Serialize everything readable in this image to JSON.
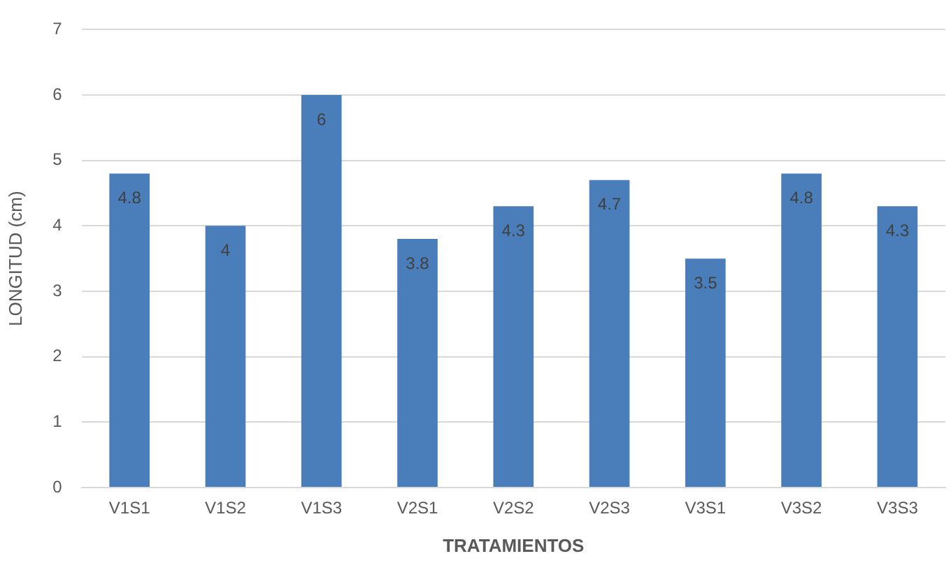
{
  "chart_data": {
    "type": "bar",
    "xlabel": "TRATAMIENTOS",
    "ylabel": "LONGITUD (cm)",
    "categories": [
      "V1S1",
      "V1S2",
      "V1S3",
      "V2S1",
      "V2S2",
      "V2S3",
      "V3S1",
      "V3S2",
      "V3S3"
    ],
    "values": [
      4.8,
      4,
      6,
      3.8,
      4.3,
      4.7,
      3.5,
      4.8,
      4.3
    ],
    "color": "#4a7ebb",
    "ylim": [
      0,
      7
    ],
    "yticks": [
      0,
      1,
      2,
      3,
      4,
      5,
      6,
      7
    ],
    "grid": "y",
    "data_labels": true,
    "legend": false
  }
}
